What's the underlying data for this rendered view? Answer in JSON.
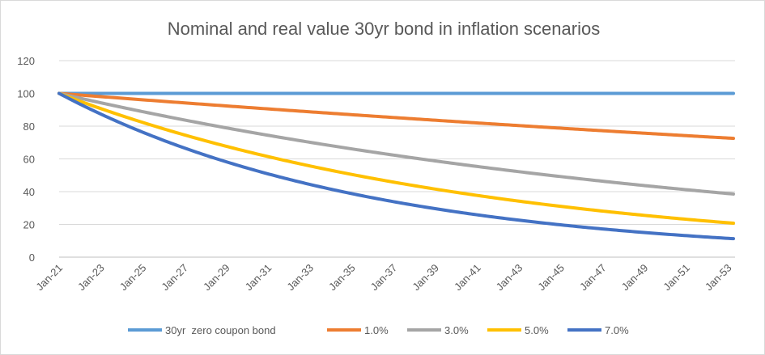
{
  "chart_data": {
    "type": "line",
    "title": "Nominal and real value 30yr bond in inflation scenarios",
    "xlabel": "",
    "ylabel": "",
    "ylim": [
      0,
      120
    ],
    "yticks": [
      0,
      20,
      40,
      60,
      80,
      100,
      120
    ],
    "categories": [
      "Jan-21",
      "Jan-23",
      "Jan-25",
      "Jan-27",
      "Jan-29",
      "Jan-31",
      "Jan-33",
      "Jan-35",
      "Jan-37",
      "Jan-39",
      "Jan-41",
      "Jan-43",
      "Jan-45",
      "Jan-47",
      "Jan-49",
      "Jan-51",
      "Jan-53"
    ],
    "x_years": [
      0,
      32.25
    ],
    "grid": "horizontal",
    "legend_position": "bottom",
    "series": [
      {
        "name": "30yr  zero coupon bond",
        "color": "#5b9bd5",
        "rate": 0.0
      },
      {
        "name": "1.0%",
        "color": "#ed7d31",
        "rate": 0.01
      },
      {
        "name": "3.0%",
        "color": "#a5a5a5",
        "rate": 0.03
      },
      {
        "name": "5.0%",
        "color": "#ffc000",
        "rate": 0.05
      },
      {
        "name": "7.0%",
        "color": "#4472c4",
        "rate": 0.07
      }
    ]
  }
}
